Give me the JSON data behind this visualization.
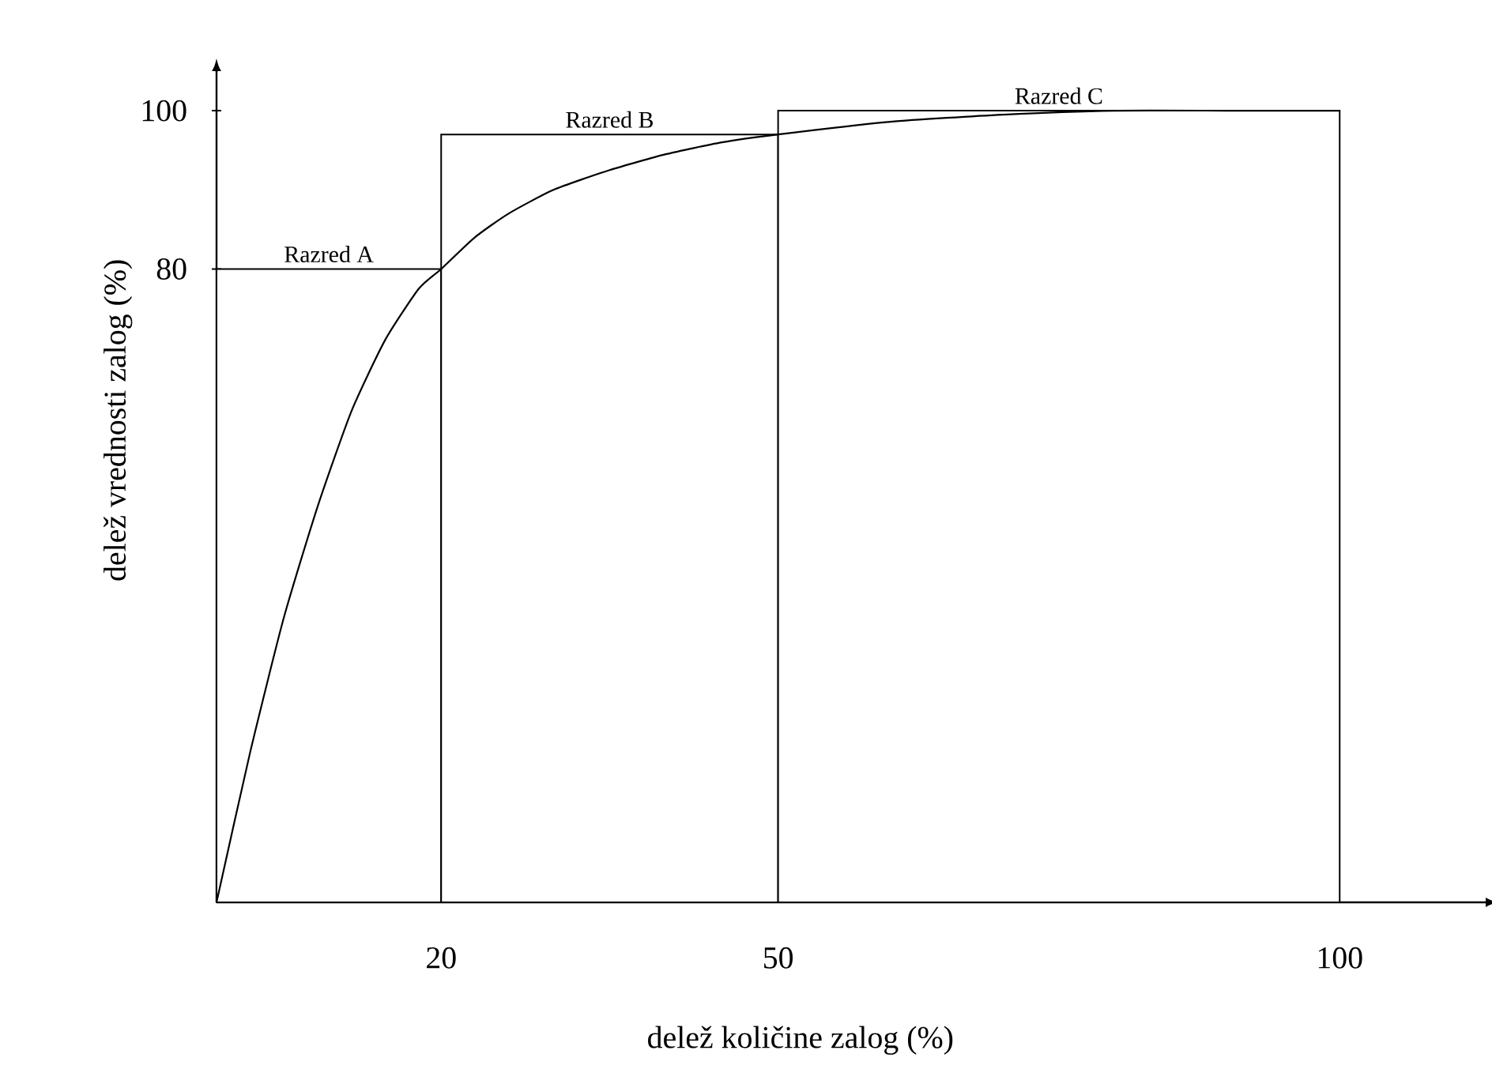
{
  "chart_data": {
    "type": "histogram",
    "xlabel": "delež količine zalog (%)",
    "ylabel": "delež vrednosti zalog (%)",
    "series": [
      {
        "type": "histogram",
        "bins": [
          0,
          20,
          50,
          100
        ],
        "values": [
          80,
          97,
          100
        ],
        "color": "#000000"
      },
      {
        "type": "line",
        "x": [
          0,
          3,
          6,
          9,
          12,
          15,
          18,
          20,
          23,
          26,
          30,
          35,
          40,
          45,
          50,
          60,
          70,
          80,
          90,
          100
        ],
        "values": [
          0,
          19,
          36,
          50,
          62,
          71,
          77.5,
          80,
          84,
          87,
          90,
          92.5,
          94.5,
          96,
          97,
          98.6,
          99.5,
          100,
          100,
          100
        ],
        "color": "#000000"
      }
    ],
    "annotations": [
      "Razred A",
      "Razred B",
      "Razred C"
    ],
    "xlim": [
      0,
      113
    ],
    "ylim": [
      0,
      105
    ],
    "xticks": [
      20,
      50,
      100
    ],
    "yticks": [
      80,
      100
    ],
    "grid": false,
    "marker": "none",
    "line_style": "solid"
  }
}
